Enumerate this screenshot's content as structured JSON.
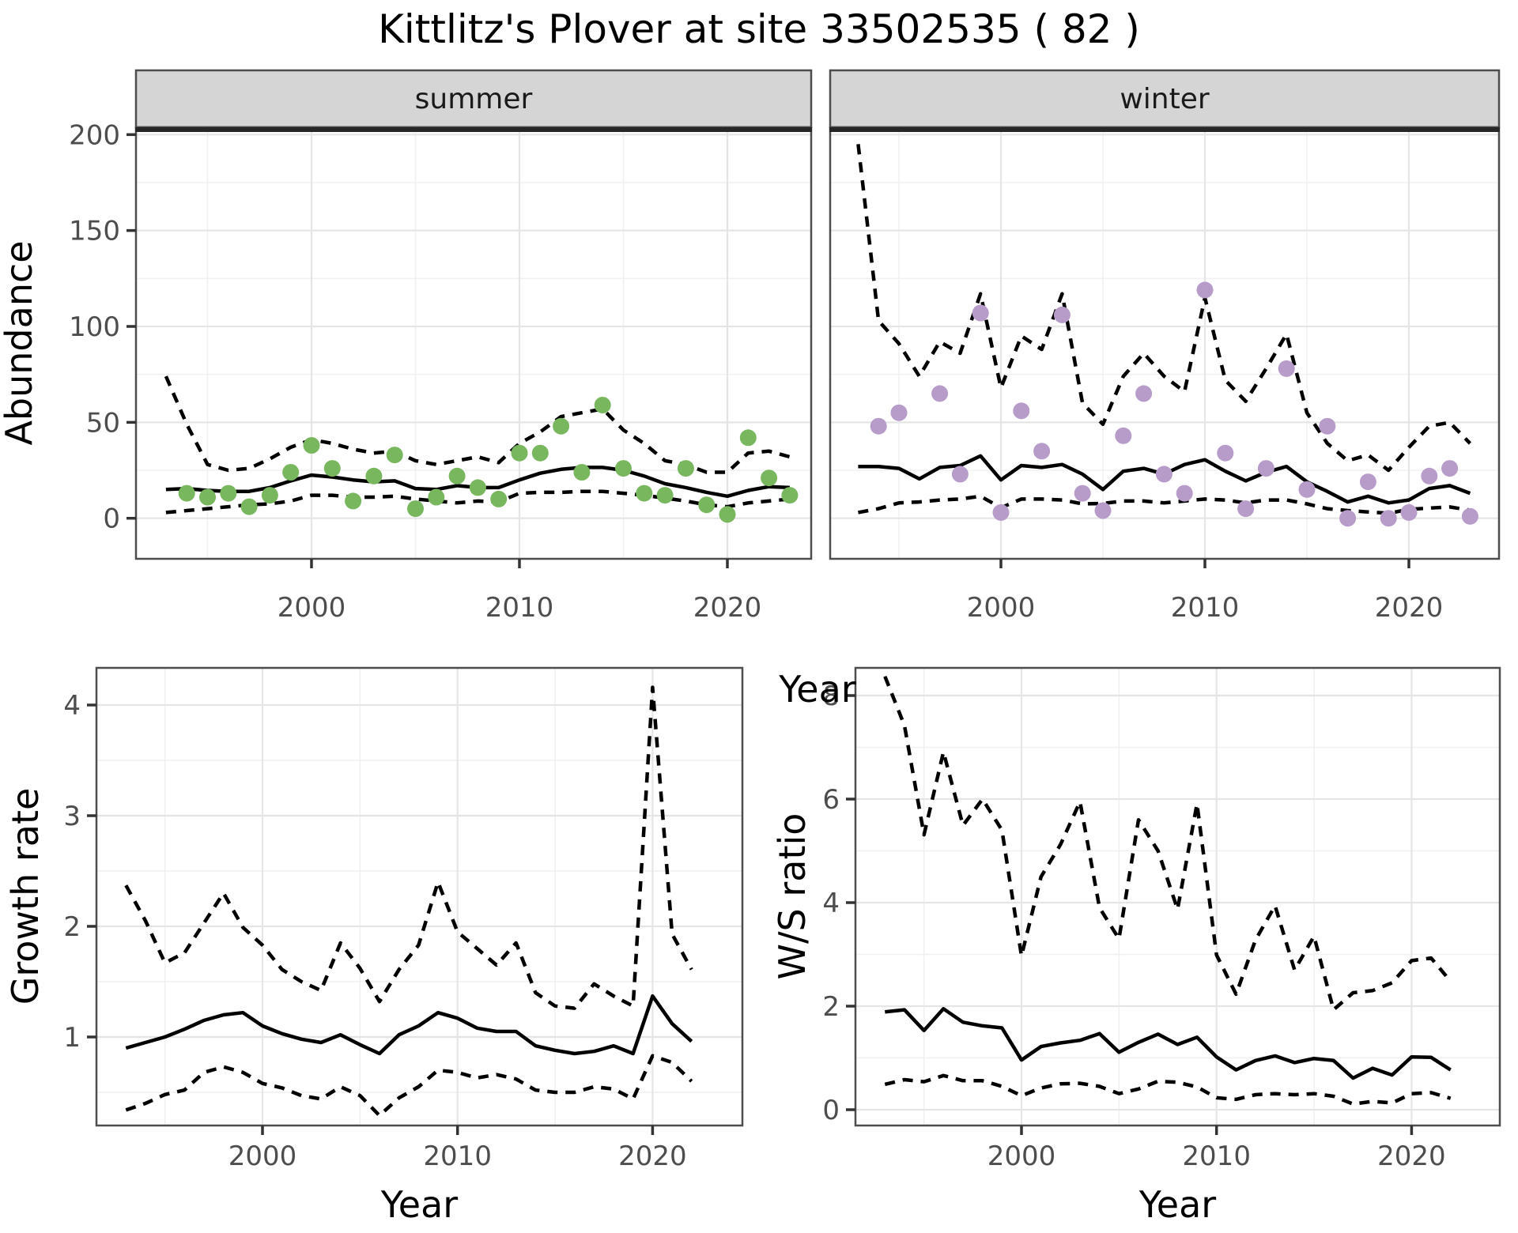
{
  "title": "Kittlitz's Plover at site 33502535 ( 82 )",
  "colors": {
    "summer_point": "#78b75e",
    "winter_point": "#b79bc9",
    "line": "#000000",
    "grid_major": "#e5e5e5",
    "grid_minor": "#f0f0f0",
    "panel_border": "#4d4d4d",
    "strip_fill": "#d5d5d5",
    "strip_text": "#1a1a1a",
    "tick_label": "#4d4d4d",
    "heavy_rule": "#262626",
    "tick_mark": "#333333"
  },
  "chart_data": [
    {
      "id": "abundance_summer",
      "type": "line",
      "facet": "summer",
      "xlabel": "Year",
      "ylabel": "Abundance",
      "xticks": [
        2000,
        2010,
        2020
      ],
      "yticks": [
        0,
        50,
        100,
        150,
        200
      ],
      "xlim": [
        1990.5,
        2024.5
      ],
      "ylim": [
        -21,
        225
      ],
      "grid": true,
      "legend": "none",
      "x": [
        1993,
        1994,
        1995,
        1996,
        1997,
        1998,
        1999,
        2000,
        2001,
        2002,
        2003,
        2004,
        2005,
        2006,
        2007,
        2008,
        2009,
        2010,
        2011,
        2012,
        2013,
        2014,
        2015,
        2016,
        2017,
        2018,
        2019,
        2020,
        2021,
        2022,
        2023
      ],
      "series": [
        {
          "name": "mean",
          "style": "solid",
          "values": [
            15,
            15.5,
            14.5,
            14,
            14,
            16,
            19.5,
            22.5,
            21.5,
            20,
            19,
            19.5,
            15.5,
            15,
            17,
            16,
            16,
            20,
            23.5,
            25.5,
            26.5,
            26.5,
            25,
            22,
            18,
            16,
            13.5,
            11.5,
            14.5,
            16.5,
            16
          ]
        },
        {
          "name": "upper_ci",
          "style": "dashed",
          "values": [
            74,
            49,
            28,
            25,
            26,
            31,
            37,
            41,
            39,
            36,
            34,
            35,
            30,
            28,
            30,
            32,
            29,
            39,
            45,
            53,
            55,
            57,
            46,
            39,
            30,
            28,
            24,
            24,
            34,
            35,
            32
          ]
        },
        {
          "name": "lower_ci",
          "style": "dashed",
          "values": [
            3,
            4,
            5,
            6,
            7,
            7.5,
            9,
            12,
            12,
            11,
            11,
            11.5,
            10,
            9,
            8,
            9,
            8.5,
            13,
            13.5,
            13.5,
            14,
            14,
            13,
            12,
            10.5,
            9,
            7,
            6,
            8,
            9,
            10
          ]
        }
      ],
      "points": {
        "name": "observed_counts",
        "color_key": "summer_point",
        "x": [
          1994,
          1995,
          1996,
          1997,
          1998,
          1999,
          2000,
          2001,
          2002,
          2003,
          2004,
          2005,
          2006,
          2007,
          2008,
          2009,
          2010,
          2011,
          2012,
          2013,
          2014,
          2015,
          2016,
          2017,
          2018,
          2019,
          2020,
          2021,
          2022,
          2023
        ],
        "values": [
          13,
          11,
          13,
          6,
          12,
          24,
          38,
          26,
          9,
          22,
          33,
          5,
          11,
          22,
          16,
          10,
          34,
          34,
          48,
          24,
          59,
          26,
          13,
          12,
          26,
          7,
          2,
          42,
          21,
          12
        ]
      }
    },
    {
      "id": "abundance_winter",
      "type": "line",
      "facet": "winter",
      "xlabel": "Year",
      "ylabel": "Abundance",
      "xticks": [
        2000,
        2010,
        2020
      ],
      "yticks": [
        0,
        50,
        100,
        150,
        200
      ],
      "xlim": [
        1992.0,
        2024.8
      ],
      "ylim": [
        -21,
        225
      ],
      "grid": true,
      "legend": "none",
      "x": [
        1993,
        1994,
        1995,
        1996,
        1997,
        1998,
        1999,
        2000,
        2001,
        2002,
        2003,
        2004,
        2005,
        2006,
        2007,
        2008,
        2009,
        2010,
        2011,
        2012,
        2013,
        2014,
        2015,
        2016,
        2017,
        2018,
        2019,
        2020,
        2021,
        2022,
        2023
      ],
      "series": [
        {
          "name": "mean",
          "style": "solid",
          "values": [
            27,
            27,
            26,
            20.5,
            26.5,
            27.5,
            32.5,
            20,
            27.5,
            26.5,
            28,
            23,
            15,
            24.5,
            26,
            23,
            28,
            30.5,
            24.5,
            19.5,
            24,
            27,
            19,
            14,
            8.5,
            11.5,
            8,
            9.5,
            15.5,
            17,
            13
          ]
        },
        {
          "name": "upper_ci",
          "style": "dashed",
          "values": [
            195,
            103,
            91,
            74,
            92,
            86,
            117,
            68,
            95,
            88,
            117,
            60,
            49,
            74,
            86,
            74,
            66,
            115,
            72,
            61,
            78,
            96,
            55,
            39,
            30,
            33,
            25,
            37,
            48,
            50,
            39
          ]
        },
        {
          "name": "lower_ci",
          "style": "dashed",
          "values": [
            3,
            5,
            8,
            8.5,
            9.5,
            10,
            11.5,
            5.5,
            10,
            10,
            9.5,
            7.5,
            7.7,
            9,
            9,
            8,
            9,
            10,
            9.5,
            8,
            9.5,
            9.5,
            7.5,
            5,
            4,
            3.3,
            2.6,
            4.6,
            5.3,
            5.9,
            4.2
          ]
        }
      ],
      "points": {
        "name": "observed_counts",
        "color_key": "winter_point",
        "x": [
          1994,
          1995,
          1996,
          1997,
          1998,
          1999,
          2000,
          2001,
          2002,
          2003,
          2004,
          2005,
          2006,
          2007,
          2008,
          2009,
          2010,
          2011,
          2012,
          2013,
          2014,
          2015,
          2016,
          2017,
          2018,
          2019,
          2020,
          2021,
          2022,
          2023
        ],
        "values": [
          48,
          55,
          null,
          65,
          23,
          107,
          3,
          56,
          35,
          106,
          13,
          4,
          43,
          65,
          23,
          13,
          119,
          34,
          5,
          26,
          78,
          15,
          48,
          0,
          19,
          0,
          3,
          22,
          26,
          1
        ]
      }
    },
    {
      "id": "growth_rate",
      "type": "line",
      "facet": null,
      "xlabel": "Year",
      "ylabel": "Growth rate",
      "xticks": [
        2000,
        2010,
        2020
      ],
      "yticks": [
        1,
        2,
        3,
        4
      ],
      "xlim": [
        1991.5,
        2024.6
      ],
      "ylim": [
        0.2,
        4.34
      ],
      "grid": true,
      "legend": "none",
      "x": [
        1993,
        1994,
        1995,
        1996,
        1997,
        1998,
        1999,
        2000,
        2001,
        2002,
        2003,
        2004,
        2005,
        2006,
        2007,
        2008,
        2009,
        2010,
        2011,
        2012,
        2013,
        2014,
        2015,
        2016,
        2017,
        2018,
        2019,
        2020,
        2021,
        2022
      ],
      "series": [
        {
          "name": "mean",
          "style": "solid",
          "values": [
            0.9,
            0.95,
            1.0,
            1.07,
            1.15,
            1.2,
            1.22,
            1.1,
            1.03,
            0.98,
            0.95,
            1.02,
            0.93,
            0.85,
            1.02,
            1.1,
            1.22,
            1.17,
            1.08,
            1.05,
            1.05,
            0.92,
            0.88,
            0.85,
            0.87,
            0.92,
            0.85,
            1.37,
            1.12,
            0.96
          ]
        },
        {
          "name": "upper_ci",
          "style": "dashed",
          "values": [
            2.37,
            2.05,
            1.67,
            1.76,
            2.03,
            2.3,
            1.99,
            1.83,
            1.61,
            1.5,
            1.42,
            1.85,
            1.62,
            1.32,
            1.61,
            1.83,
            2.4,
            1.95,
            1.8,
            1.65,
            1.85,
            1.4,
            1.28,
            1.26,
            1.48,
            1.37,
            1.28,
            4.16,
            1.93,
            1.61
          ]
        },
        {
          "name": "lower_ci",
          "style": "dashed",
          "values": [
            0.34,
            0.4,
            0.48,
            0.52,
            0.68,
            0.73,
            0.68,
            0.58,
            0.54,
            0.47,
            0.44,
            0.55,
            0.47,
            0.29,
            0.45,
            0.55,
            0.7,
            0.68,
            0.63,
            0.66,
            0.62,
            0.52,
            0.5,
            0.5,
            0.55,
            0.53,
            0.44,
            0.83,
            0.77,
            0.6
          ]
        }
      ],
      "points": null
    },
    {
      "id": "ws_ratio",
      "type": "line",
      "facet": null,
      "xlabel": "Year",
      "ylabel": "W/S ratio",
      "xticks": [
        2000,
        2010,
        2020
      ],
      "yticks": [
        0,
        2,
        4,
        6,
        8
      ],
      "xlim": [
        1991.5,
        2024.6
      ],
      "ylim": [
        -0.3,
        8.55
      ],
      "grid": true,
      "legend": "none",
      "x": [
        1993,
        1994,
        1995,
        1996,
        1997,
        1998,
        1999,
        2000,
        2001,
        2002,
        2003,
        2004,
        2005,
        2006,
        2007,
        2008,
        2009,
        2010,
        2011,
        2012,
        2013,
        2014,
        2015,
        2016,
        2017,
        2018,
        2019,
        2020,
        2021,
        2022
      ],
      "series": [
        {
          "name": "mean",
          "style": "solid",
          "values": [
            1.89,
            1.93,
            1.53,
            1.95,
            1.69,
            1.62,
            1.58,
            0.96,
            1.22,
            1.29,
            1.34,
            1.47,
            1.11,
            1.3,
            1.46,
            1.26,
            1.4,
            1.02,
            0.77,
            0.95,
            1.04,
            0.91,
            0.99,
            0.95,
            0.61,
            0.8,
            0.67,
            1.02,
            1.01,
            0.77
          ]
        },
        {
          "name": "upper_ci",
          "style": "dashed",
          "values": [
            8.37,
            7.42,
            5.31,
            6.91,
            5.49,
            6.0,
            5.4,
            2.97,
            4.5,
            5.12,
            5.95,
            3.9,
            3.3,
            5.6,
            5.0,
            3.87,
            5.91,
            2.99,
            2.23,
            3.28,
            3.94,
            2.7,
            3.35,
            1.93,
            2.26,
            2.3,
            2.45,
            2.88,
            2.93,
            2.48
          ]
        },
        {
          "name": "lower_ci",
          "style": "dashed",
          "values": [
            0.49,
            0.58,
            0.54,
            0.66,
            0.56,
            0.56,
            0.45,
            0.27,
            0.42,
            0.5,
            0.51,
            0.45,
            0.31,
            0.4,
            0.55,
            0.53,
            0.44,
            0.23,
            0.2,
            0.29,
            0.31,
            0.29,
            0.31,
            0.26,
            0.11,
            0.16,
            0.13,
            0.31,
            0.33,
            0.22
          ]
        }
      ],
      "points": null
    }
  ]
}
